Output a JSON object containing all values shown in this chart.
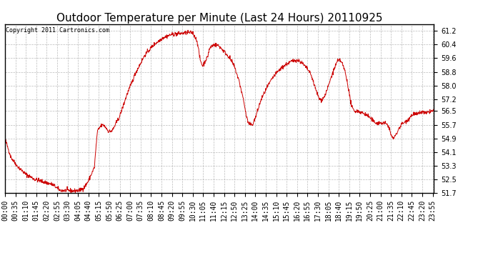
{
  "title": "Outdoor Temperature per Minute (Last 24 Hours) 20110925",
  "copyright_text": "Copyright 2011 Cartronics.com",
  "line_color": "#cc0000",
  "bg_color": "#ffffff",
  "plot_bg_color": "#ffffff",
  "grid_color": "#aaaaaa",
  "ylim": [
    51.7,
    61.6
  ],
  "yticks": [
    51.7,
    52.5,
    53.3,
    54.1,
    54.9,
    55.7,
    56.5,
    57.2,
    58.0,
    58.8,
    59.6,
    60.4,
    61.2
  ],
  "title_fontsize": 11,
  "copyright_fontsize": 6,
  "tick_fontsize": 7,
  "x_tick_interval_minutes": 35,
  "total_minutes": 1440
}
